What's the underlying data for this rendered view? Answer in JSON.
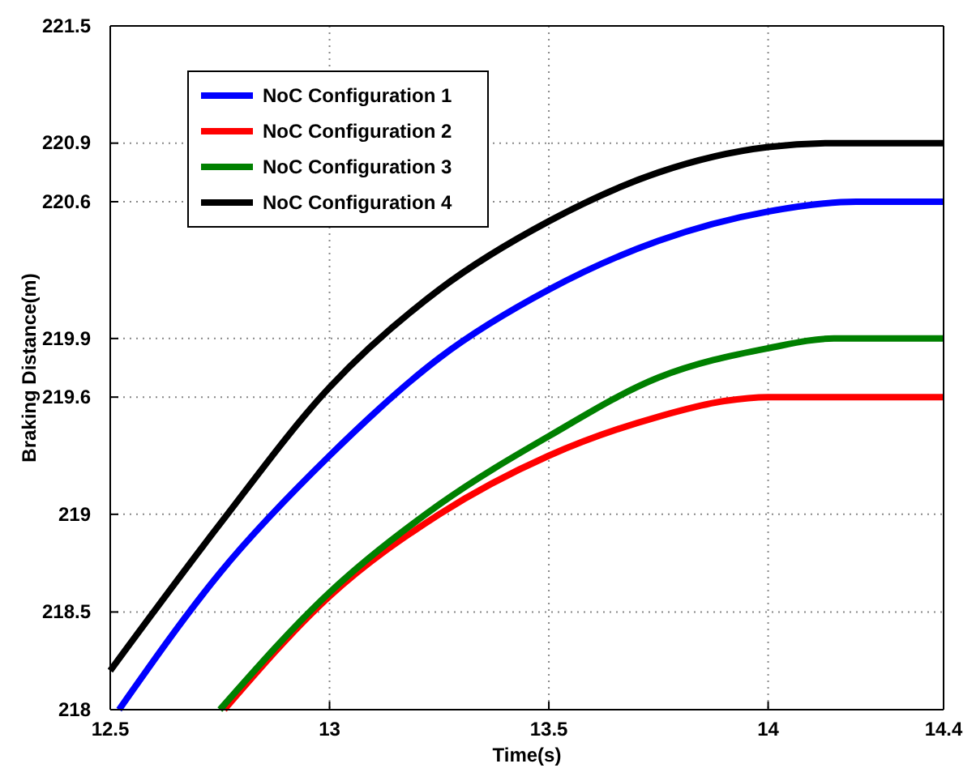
{
  "chart_data": {
    "type": "line",
    "xlabel": "Time(s)",
    "ylabel": "Braking Distance(m)",
    "xlim": [
      12.5,
      14.4
    ],
    "xticks": [
      12.5,
      13,
      13.5,
      14,
      14.4
    ],
    "ylim": [
      218,
      221.5
    ],
    "yticks": [
      218,
      218.5,
      219,
      219.6,
      219.9,
      220.6,
      220.9,
      221.5
    ],
    "grid": true,
    "legend": "top left",
    "line_style": "solid",
    "marker": "none",
    "series": [
      {
        "name": "NoC Configuration 1",
        "color": "#0000ff",
        "x": [
          12.52,
          12.75,
          13,
          13.25,
          13.5,
          13.75,
          14,
          14.2,
          14.4
        ],
        "values": [
          218,
          218.7,
          219.3,
          219.8,
          220.15,
          220.4,
          220.55,
          220.6,
          220.6
        ]
      },
      {
        "name": "NoC Configuration 2",
        "color": "#ff0000",
        "x": [
          12.76,
          13,
          13.25,
          13.5,
          13.75,
          13.9,
          14,
          14.4
        ],
        "values": [
          218,
          218.58,
          219,
          219.3,
          219.5,
          219.58,
          219.6,
          219.6
        ]
      },
      {
        "name": "NoC Configuration 3",
        "color": "#008000",
        "x": [
          12.75,
          13,
          13.25,
          13.5,
          13.75,
          14,
          14.15,
          14.4
        ],
        "values": [
          218,
          218.6,
          219.05,
          219.4,
          219.7,
          219.85,
          219.9,
          219.9
        ]
      },
      {
        "name": "NoC Configuration 4",
        "color": "#000000",
        "x": [
          12.5,
          12.75,
          13,
          13.25,
          13.5,
          13.75,
          14,
          14.15,
          14.4
        ],
        "values": [
          218.2,
          218.95,
          219.65,
          220.15,
          220.5,
          220.75,
          220.88,
          220.9,
          220.9
        ]
      }
    ]
  }
}
